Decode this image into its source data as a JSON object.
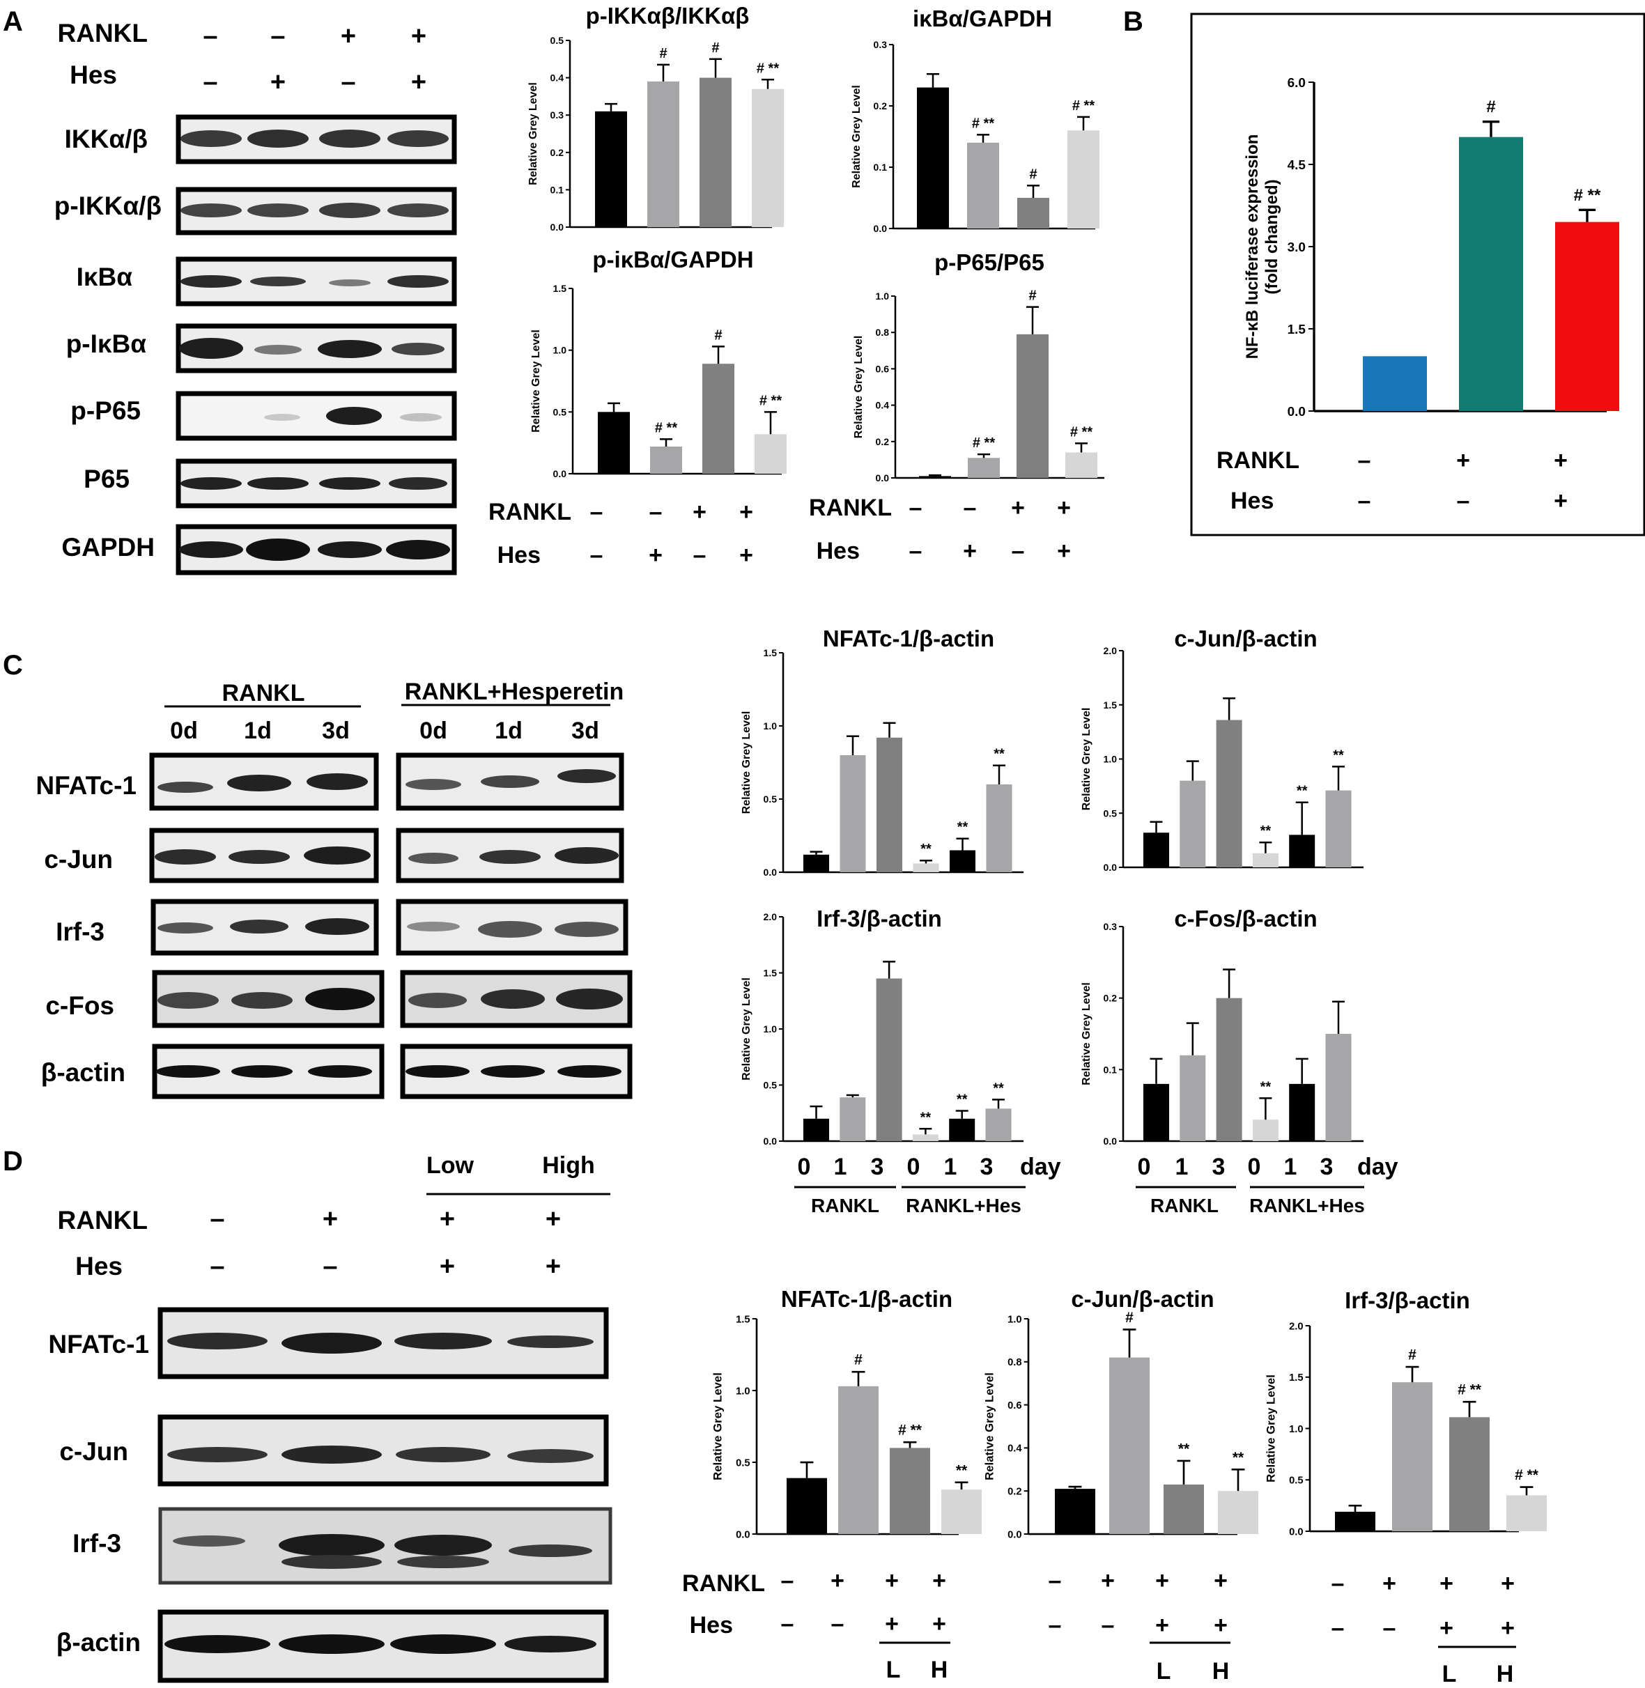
{
  "panels": {
    "A": "A",
    "B": "B",
    "C": "C",
    "D": "D"
  },
  "panel_A": {
    "blot_conditions": {
      "rankl": [
        "–",
        "–",
        "+",
        "+"
      ],
      "hes": [
        "–",
        "+",
        "–",
        "+"
      ]
    },
    "row_labels": {
      "rankl": "RANKL",
      "hes": "Hes"
    },
    "blots": [
      "IKKα/β",
      "p-IKKα/β",
      "IκBα",
      "p-IκBα",
      "p-P65",
      "P65",
      "GAPDH"
    ],
    "bottom_conditions": {
      "rankl_label": "RANKL",
      "hes_label": "Hes",
      "rankl": [
        "–",
        "–",
        "+",
        "+"
      ],
      "hes": [
        "–",
        "+",
        "–",
        "+"
      ]
    }
  },
  "panel_B": {
    "conditions": {
      "rankl_label": "RANKL",
      "hes_label": "Hes",
      "rankl": [
        "–",
        "+",
        "+"
      ],
      "hes": [
        "–",
        "–",
        "+"
      ]
    }
  },
  "panel_C": {
    "groups": [
      "RANKL",
      "RANKL+Hesperetin"
    ],
    "days": [
      "0d",
      "1d",
      "3d",
      "0d",
      "1d",
      "3d"
    ],
    "blots": [
      "NFATc-1",
      "c-Jun",
      "Irf-3",
      "c-Fos",
      "β-actin"
    ],
    "xaxis": {
      "ticks": [
        "0",
        "1",
        "3",
        "0",
        "1",
        "3"
      ],
      "unit": "day",
      "groups": [
        "RANKL",
        "RANKL+Hes"
      ]
    }
  },
  "panel_D": {
    "dose_labels": [
      "Low",
      "High"
    ],
    "conditions": {
      "rankl_label": "RANKL",
      "hes_label": "Hes",
      "rankl": [
        "–",
        "+",
        "+",
        "+"
      ],
      "hes": [
        "–",
        "–",
        "+",
        "+"
      ]
    },
    "blots": [
      "NFATc-1",
      "c-Jun",
      "Irf-3",
      "β-actin"
    ],
    "bottom_conditions": {
      "rankl_label": "RANKL",
      "hes_label": "Hes",
      "rankl": [
        "–",
        "+",
        "+",
        "+"
      ],
      "hes": [
        "–",
        "–",
        "+",
        "+"
      ],
      "dose": [
        "L",
        "H"
      ]
    }
  },
  "chart_data": [
    {
      "id": "a1",
      "type": "bar",
      "title": "p-IKKαβ/IKKαβ",
      "ylabel": "Relative Grey Level",
      "ylim": [
        0,
        0.5
      ],
      "yticks": [
        "0.0",
        "0.1",
        "0.2",
        "0.3",
        "0.4",
        "0.5"
      ],
      "values": [
        0.31,
        0.39,
        0.4,
        0.37
      ],
      "errors": [
        0.02,
        0.045,
        0.05,
        0.025
      ],
      "colors": [
        "#000000",
        "#a6a6a8",
        "#808080",
        "#d6d6d6"
      ],
      "marks": [
        "",
        "#",
        "#",
        "# **"
      ]
    },
    {
      "id": "a2",
      "type": "bar",
      "title": "iκBα/GAPDH",
      "ylabel": "Relative Grey Level",
      "ylim": [
        0,
        0.3
      ],
      "yticks": [
        "0.0",
        "0.1",
        "0.2",
        "0.3"
      ],
      "values": [
        0.23,
        0.14,
        0.05,
        0.16
      ],
      "errors": [
        0.022,
        0.013,
        0.02,
        0.022
      ],
      "colors": [
        "#000000",
        "#a6a6a8",
        "#808080",
        "#d6d6d6"
      ],
      "marks": [
        "",
        "# **",
        "#",
        "# **"
      ]
    },
    {
      "id": "a3",
      "type": "bar",
      "title": "p-iκBα/GAPDH",
      "ylabel": "Relative Grey Level",
      "ylim": [
        0,
        1.5
      ],
      "yticks": [
        "0.0",
        "0.5",
        "1.0",
        "1.5"
      ],
      "values": [
        0.5,
        0.22,
        0.89,
        0.32
      ],
      "errors": [
        0.07,
        0.06,
        0.14,
        0.18
      ],
      "colors": [
        "#000000",
        "#a6a6a8",
        "#808080",
        "#d6d6d6"
      ],
      "marks": [
        "",
        "# **",
        "#",
        "# **"
      ]
    },
    {
      "id": "a4",
      "type": "bar",
      "title": "p-P65/P65",
      "ylabel": "Relative Grey Level",
      "ylim": [
        0,
        1.0
      ],
      "yticks": [
        "0.0",
        "0.2",
        "0.4",
        "0.6",
        "0.8",
        "1.0"
      ],
      "values": [
        0.01,
        0.11,
        0.79,
        0.14
      ],
      "errors": [
        0.005,
        0.02,
        0.15,
        0.05
      ],
      "colors": [
        "#000000",
        "#a6a6a8",
        "#808080",
        "#d6d6d6"
      ],
      "marks": [
        "",
        "# **",
        "#",
        "# **"
      ]
    },
    {
      "id": "b1",
      "type": "bar",
      "title": "",
      "ylabel": "NF-κB luciferase expression",
      "ylabel2": "(fold changed)",
      "ylim": [
        0,
        6.0
      ],
      "yticks": [
        "0.0",
        "1.5",
        "3.0",
        "4.5",
        "6.0"
      ],
      "values": [
        1.0,
        5.0,
        3.45
      ],
      "errors": [
        0,
        0.28,
        0.22
      ],
      "colors": [
        "#1877b6",
        "#127b74",
        "#f20c0f"
      ],
      "marks": [
        "",
        "#",
        "# **"
      ]
    },
    {
      "id": "c1",
      "type": "bar",
      "title": "NFATc-1/β-actin",
      "ylabel": "Relative Grey Level",
      "ylim": [
        0,
        1.5
      ],
      "yticks": [
        "0.0",
        "0.5",
        "1.0",
        "1.5"
      ],
      "values": [
        0.12,
        0.8,
        0.92,
        0.06,
        0.15,
        0.6
      ],
      "errors": [
        0.02,
        0.13,
        0.1,
        0.02,
        0.08,
        0.13
      ],
      "colors": [
        "#000000",
        "#a6a6a8",
        "#808080",
        "#d6d6d6",
        "#000000",
        "#a6a6a8"
      ],
      "marks": [
        "",
        "",
        "",
        "**",
        "**",
        "**"
      ]
    },
    {
      "id": "c2",
      "type": "bar",
      "title": "c-Jun/β-actin",
      "ylabel": "Relative Grey Level",
      "ylim": [
        0,
        2.0
      ],
      "yticks": [
        "0.0",
        "0.5",
        "1.0",
        "1.5",
        "2.0"
      ],
      "values": [
        0.32,
        0.8,
        1.36,
        0.13,
        0.3,
        0.71
      ],
      "errors": [
        0.1,
        0.18,
        0.2,
        0.1,
        0.3,
        0.22
      ],
      "colors": [
        "#000000",
        "#a6a6a8",
        "#808080",
        "#d6d6d6",
        "#000000",
        "#a6a6a8"
      ],
      "marks": [
        "",
        "",
        "",
        "**",
        "**",
        "**"
      ]
    },
    {
      "id": "c3",
      "type": "bar",
      "title": "Irf-3/β-actin",
      "ylabel": "Relative Grey Level",
      "ylim": [
        0,
        2.0
      ],
      "yticks": [
        "0.0",
        "0.5",
        "1.0",
        "1.5",
        "2.0"
      ],
      "values": [
        0.2,
        0.39,
        1.45,
        0.06,
        0.2,
        0.29
      ],
      "errors": [
        0.11,
        0.02,
        0.15,
        0.05,
        0.07,
        0.08
      ],
      "colors": [
        "#000000",
        "#a6a6a8",
        "#808080",
        "#d6d6d6",
        "#000000",
        "#a6a6a8"
      ],
      "marks": [
        "",
        "",
        "",
        "**",
        "**",
        "**"
      ]
    },
    {
      "id": "c4",
      "type": "bar",
      "title": "c-Fos/β-actin",
      "ylabel": "Relative Grey Level",
      "ylim": [
        0,
        0.3
      ],
      "yticks": [
        "0.0",
        "0.1",
        "0.2",
        "0.3"
      ],
      "values": [
        0.08,
        0.12,
        0.2,
        0.03,
        0.08,
        0.15
      ],
      "errors": [
        0.035,
        0.045,
        0.04,
        0.03,
        0.035,
        0.045
      ],
      "colors": [
        "#000000",
        "#a6a6a8",
        "#808080",
        "#d6d6d6",
        "#000000",
        "#a6a6a8"
      ],
      "marks": [
        "",
        "",
        "",
        "**",
        "",
        ""
      ]
    },
    {
      "id": "d1",
      "type": "bar",
      "title": "NFATc-1/β-actin",
      "ylabel": "Relative Grey Level",
      "ylim": [
        0,
        1.5
      ],
      "yticks": [
        "0.0",
        "0.5",
        "1.0",
        "1.5"
      ],
      "values": [
        0.39,
        1.03,
        0.6,
        0.31
      ],
      "errors": [
        0.11,
        0.1,
        0.04,
        0.05
      ],
      "colors": [
        "#000000",
        "#a6a6a8",
        "#808080",
        "#d6d6d6"
      ],
      "marks": [
        "",
        "#",
        "# **",
        "**"
      ]
    },
    {
      "id": "d2",
      "type": "bar",
      "title": "c-Jun/β-actin",
      "ylabel": "Relative Grey Level",
      "ylim": [
        0,
        1.0
      ],
      "yticks": [
        "0.0",
        "0.2",
        "0.4",
        "0.6",
        "0.8",
        "1.0"
      ],
      "values": [
        0.21,
        0.82,
        0.23,
        0.2
      ],
      "errors": [
        0.01,
        0.13,
        0.11,
        0.1
      ],
      "colors": [
        "#000000",
        "#a6a6a8",
        "#808080",
        "#d6d6d6"
      ],
      "marks": [
        "",
        "#",
        "**",
        "**"
      ]
    },
    {
      "id": "d3",
      "type": "bar",
      "title": "Irf-3/β-actin",
      "ylabel": "Relative Grey Level",
      "ylim": [
        0,
        2.0
      ],
      "yticks": [
        "0.0",
        "0.5",
        "1.0",
        "1.5",
        "2.0"
      ],
      "values": [
        0.19,
        1.45,
        1.11,
        0.35
      ],
      "errors": [
        0.06,
        0.15,
        0.15,
        0.08
      ],
      "colors": [
        "#000000",
        "#a6a6a8",
        "#808080",
        "#d6d6d6"
      ],
      "marks": [
        "",
        "#",
        "# **",
        "# **"
      ]
    }
  ]
}
